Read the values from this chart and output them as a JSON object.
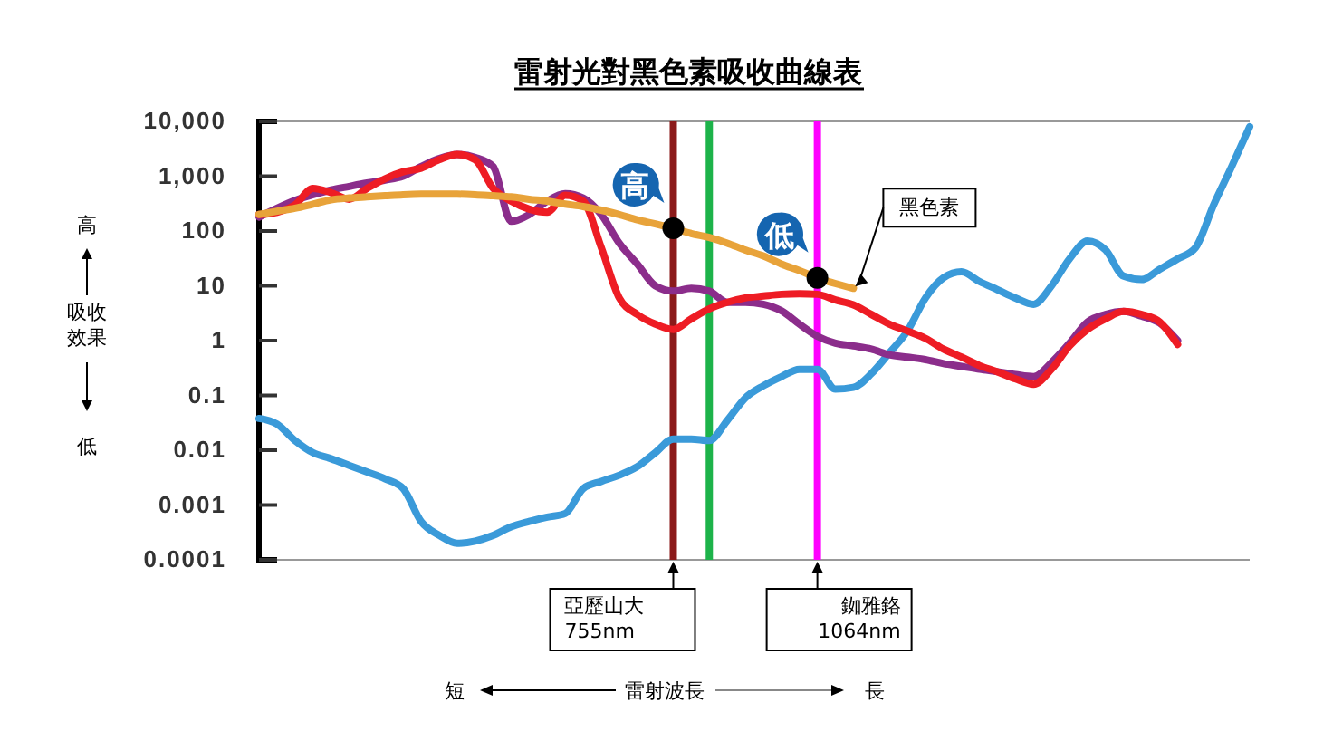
{
  "chart_data": {
    "type": "line",
    "title": "雷射光對黑色素吸收曲線表",
    "ylabel": "吸收效果",
    "categories": [
      null,
      null,
      null,
      null,
      null,
      null,
      null,
      null,
      null,
      null,
      null,
      null,
      null,
      null,
      null,
      null,
      null,
      null,
      null,
      null,
      null,
      null,
      null,
      null,
      null,
      null,
      null,
      null,
      null,
      null,
      null,
      null,
      null,
      null,
      null,
      null,
      null,
      null,
      null,
      null,
      null,
      null,
      null,
      null,
      null,
      null,
      null,
      null,
      null,
      null,
      null,
      null,
      null,
      null,
      null,
      null
    ],
    "log": "y",
    "ylim": [
      0.0001,
      10000
    ],
    "yticks": [
      {
        "value": 10000,
        "label": "10,000"
      },
      {
        "value": 1000,
        "label": "1,000"
      },
      100,
      10,
      1,
      0.1,
      0.01,
      0.001,
      0.0001
    ],
    "tick_labels": "y",
    "grid": false,
    "marker": "none",
    "line_style": "solid",
    "series": [
      {
        "name": "黑色素",
        "color": "#e8a33a",
        "values": [
          200,
          230,
          260,
          310,
          370,
          400,
          420,
          440,
          460,
          470,
          470,
          470,
          460,
          440,
          420,
          380,
          350,
          310,
          280,
          240,
          200,
          160,
          135,
          112,
          90,
          76,
          60,
          45,
          35,
          25,
          19,
          14,
          11,
          9,
          null,
          null,
          null,
          null,
          null,
          null,
          null,
          null,
          null,
          null,
          null,
          null,
          null,
          null,
          null,
          null,
          null,
          null,
          null,
          null,
          null,
          null
        ]
      },
      {
        "color": "#8b2d8b",
        "values": [
          180,
          260,
          360,
          460,
          560,
          650,
          750,
          850,
          1000,
          1500,
          2100,
          2500,
          2200,
          1500,
          150,
          200,
          350,
          480,
          400,
          200,
          60,
          25,
          10,
          8,
          9,
          8,
          5,
          5,
          4.6,
          3.5,
          2,
          1.2,
          0.9,
          0.8,
          0.7,
          0.55,
          0.5,
          0.45,
          0.38,
          0.34,
          0.3,
          0.27,
          0.24,
          0.22,
          0.4,
          0.9,
          2.2,
          3,
          3.4,
          2.8,
          2.1,
          1,
          null,
          null,
          null,
          null
        ]
      },
      {
        "color": "#ee1c24",
        "values": [
          200,
          220,
          300,
          600,
          500,
          380,
          600,
          900,
          1200,
          1400,
          2000,
          2500,
          2000,
          600,
          350,
          250,
          220,
          450,
          350,
          50,
          6,
          3,
          2,
          1.6,
          2.5,
          3.8,
          5,
          6,
          6.5,
          7,
          7.2,
          7,
          5.5,
          4.5,
          3,
          2,
          1.5,
          1.1,
          0.7,
          0.5,
          0.35,
          0.27,
          0.2,
          0.16,
          0.3,
          0.8,
          1.6,
          2.5,
          3.4,
          3,
          2.2,
          0.85,
          null,
          null,
          null,
          null
        ]
      },
      {
        "color": "#3a9ad9",
        "values": [
          0.038,
          0.03,
          0.015,
          0.009,
          0.007,
          0.0053,
          0.004,
          0.003,
          0.002,
          0.0005,
          0.00028,
          0.0002,
          0.00022,
          0.00028,
          0.0004,
          0.0005,
          0.0006,
          0.0007,
          0.002,
          0.0027,
          0.0035,
          0.005,
          0.009,
          0.016,
          0.016,
          0.015,
          0.035,
          0.09,
          0.15,
          0.22,
          0.3,
          0.3,
          0.13,
          0.14,
          0.25,
          0.6,
          1.5,
          6,
          14,
          18,
          12,
          8.5,
          6,
          4.6,
          10,
          31,
          66,
          45,
          15,
          13,
          20,
          31,
          50,
          300,
          1500,
          8000
        ]
      }
    ],
    "annotations": [
      "高",
      "低",
      "高",
      "低",
      "短",
      "長",
      "雷射波長",
      "亞歷山大 755nm",
      "銣雅鉻 1064nm"
    ]
  }
}
